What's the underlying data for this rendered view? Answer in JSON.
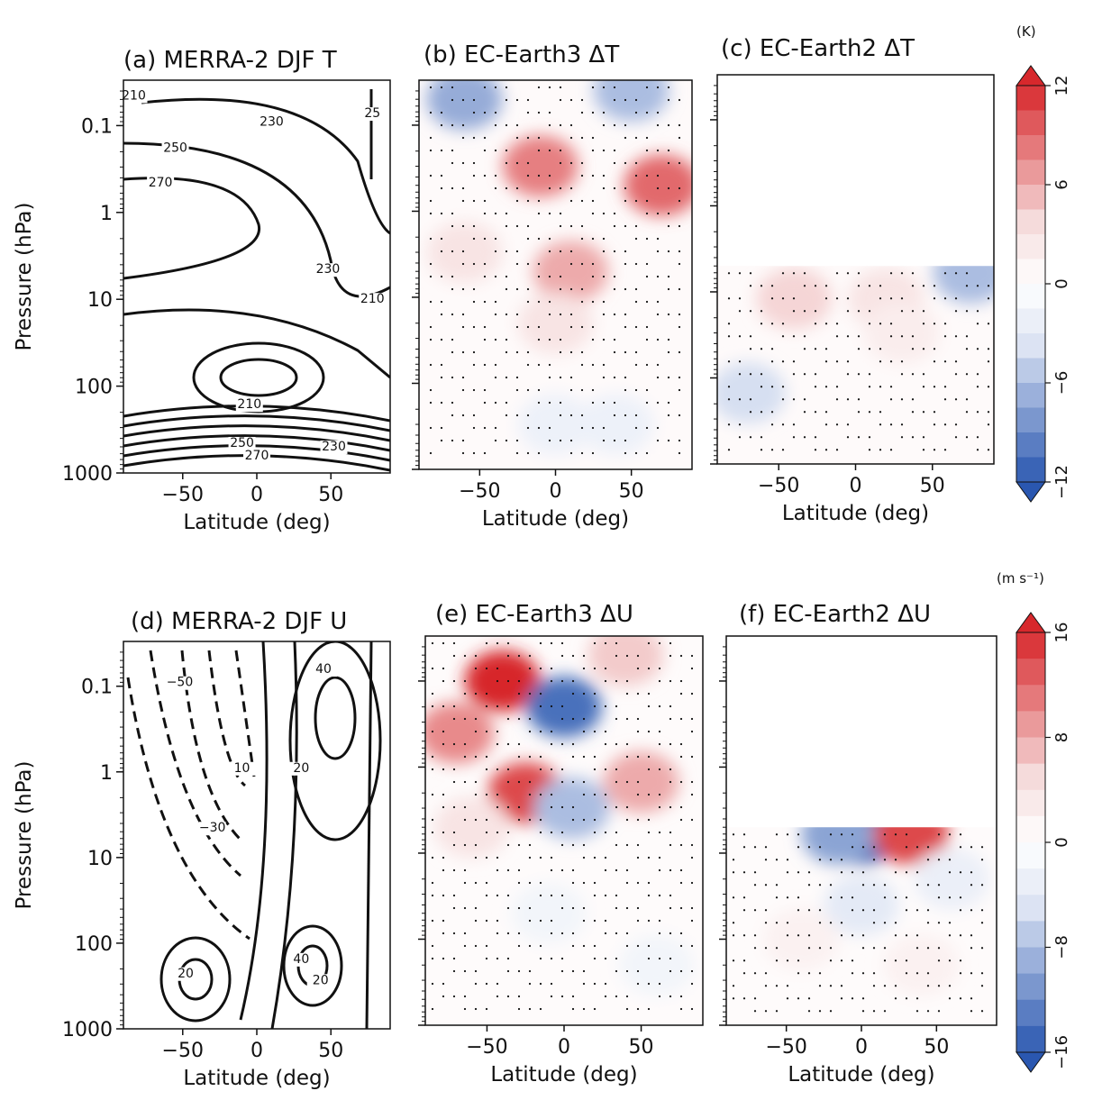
{
  "colors": {
    "negative_strong": "#2a57b0",
    "negative_light": "#dfe6f4",
    "positive_light": "#f6dede",
    "positive_strong": "#d7282c",
    "contour": "#111111",
    "stipple": "#111111"
  },
  "chart_data": [
    {
      "id": "a",
      "type": "contour",
      "title": "(a) MERRA-2 DJF T",
      "xlabel": "Latitude (deg)",
      "ylabel": "Pressure (hPa)",
      "xlim": [
        -90,
        90
      ],
      "ylim": [
        1000,
        0.03
      ],
      "yscale": "log",
      "xticks": [
        "−50",
        "0",
        "50"
      ],
      "yticks": [
        "0.1",
        "1",
        "10",
        "100",
        "1000"
      ],
      "contour_labels": [
        {
          "text": "210",
          "lat": -83,
          "p": 0.05
        },
        {
          "text": "230",
          "lat": 10,
          "p": 0.1
        },
        {
          "text": "25",
          "lat": 78,
          "p": 0.08
        },
        {
          "text": "250",
          "lat": -55,
          "p": 0.2
        },
        {
          "text": "270",
          "lat": -65,
          "p": 0.5
        },
        {
          "text": "230",
          "lat": 48,
          "p": 5
        },
        {
          "text": "210",
          "lat": 78,
          "p": 11
        },
        {
          "text": "210",
          "lat": -5,
          "p": 180
        },
        {
          "text": "250",
          "lat": -10,
          "p": 500
        },
        {
          "text": "270",
          "lat": 0,
          "p": 700
        },
        {
          "text": "230",
          "lat": 52,
          "p": 550
        }
      ]
    },
    {
      "id": "b",
      "type": "heatmap",
      "title": "(b) EC-Earth3 ΔT",
      "xlabel": "Latitude (deg)",
      "ylabel": "",
      "xlim": [
        -90,
        90
      ],
      "ylim": [
        1000,
        0.03
      ],
      "yscale": "log",
      "xticks": [
        "−50",
        "0",
        "50"
      ],
      "colorbar": 0,
      "anomalies": [
        {
          "lat": -60,
          "p": 0.05,
          "value": -7
        },
        {
          "lat": 50,
          "p": 0.04,
          "value": -6
        },
        {
          "lat": -10,
          "p": 0.3,
          "value": 8
        },
        {
          "lat": 70,
          "p": 0.5,
          "value": 9
        },
        {
          "lat": 10,
          "p": 5,
          "value": 6
        },
        {
          "lat": -60,
          "p": 3,
          "value": 3
        },
        {
          "lat": 0,
          "p": 20,
          "value": 3
        },
        {
          "lat": 0,
          "p": 300,
          "value": -2
        },
        {
          "lat": 40,
          "p": 300,
          "value": -2
        }
      ]
    },
    {
      "id": "c",
      "type": "heatmap",
      "title": "(c) EC-Earth2 ΔT",
      "xlabel": "Latitude (deg)",
      "ylabel": "",
      "xlim": [
        -90,
        90
      ],
      "ylim": [
        1000,
        0.03
      ],
      "yscale": "log",
      "data_top_p": 5,
      "xticks": [
        "−50",
        "0",
        "50"
      ],
      "colorbar": 0,
      "anomalies": [
        {
          "lat": -40,
          "p": 12,
          "value": 4
        },
        {
          "lat": 20,
          "p": 12,
          "value": 3
        },
        {
          "lat": 75,
          "p": 6,
          "value": -6
        },
        {
          "lat": -70,
          "p": 150,
          "value": -4
        },
        {
          "lat": 30,
          "p": 30,
          "value": 2
        }
      ]
    },
    {
      "id": "d",
      "type": "contour",
      "title": "(d) MERRA-2 DJF U",
      "xlabel": "Latitude (deg)",
      "ylabel": "Pressure (hPa)",
      "xlim": [
        -90,
        90
      ],
      "ylim": [
        1000,
        0.03
      ],
      "yscale": "log",
      "xticks": [
        "−50",
        "0",
        "50"
      ],
      "yticks": [
        "0.1",
        "1",
        "10",
        "100",
        "1000"
      ],
      "contour_labels": [
        {
          "text": "−50",
          "lat": -52,
          "p": 0.1
        },
        {
          "text": "40",
          "lat": 45,
          "p": 0.07
        },
        {
          "text": "10",
          "lat": -10,
          "p": 1
        },
        {
          "text": "20",
          "lat": 30,
          "p": 1
        },
        {
          "text": "−30",
          "lat": -30,
          "p": 5
        },
        {
          "text": "20",
          "lat": -48,
          "p": 250
        },
        {
          "text": "40",
          "lat": 30,
          "p": 170
        },
        {
          "text": "20",
          "lat": 43,
          "p": 300
        }
      ]
    },
    {
      "id": "e",
      "type": "heatmap",
      "title": "(e) EC-Earth3 ΔU",
      "xlabel": "Latitude (deg)",
      "ylabel": "",
      "xlim": [
        -90,
        90
      ],
      "ylim": [
        1000,
        0.03
      ],
      "yscale": "log",
      "xticks": [
        "−50",
        "0",
        "50"
      ],
      "colorbar": 1,
      "anomalies": [
        {
          "lat": -40,
          "p": 0.1,
          "value": 16
        },
        {
          "lat": -70,
          "p": 0.4,
          "value": 10
        },
        {
          "lat": -25,
          "p": 2,
          "value": 14
        },
        {
          "lat": 0,
          "p": 0.2,
          "value": -14
        },
        {
          "lat": 5,
          "p": 3,
          "value": -8
        },
        {
          "lat": 50,
          "p": 1.5,
          "value": 8
        },
        {
          "lat": 40,
          "p": 0.05,
          "value": 6
        },
        {
          "lat": 60,
          "p": 200,
          "value": -2
        },
        {
          "lat": -10,
          "p": 50,
          "value": -2
        },
        {
          "lat": -60,
          "p": 5,
          "value": 4
        }
      ]
    },
    {
      "id": "f",
      "type": "heatmap",
      "title": "(f) EC-Earth2 ΔU",
      "xlabel": "Latitude (deg)",
      "ylabel": "",
      "xlim": [
        -90,
        90
      ],
      "ylim": [
        1000,
        0.03
      ],
      "yscale": "log",
      "data_top_p": 5,
      "xticks": [
        "−50",
        "0",
        "50"
      ],
      "colorbar": 1,
      "anomalies": [
        {
          "lat": 0,
          "p": 6,
          "value": -16
        },
        {
          "lat": -15,
          "p": 6,
          "value": -10
        },
        {
          "lat": 33,
          "p": 6,
          "value": 14
        },
        {
          "lat": 0,
          "p": 40,
          "value": -4
        },
        {
          "lat": 60,
          "p": 20,
          "value": -3
        },
        {
          "lat": -40,
          "p": 100,
          "value": 2
        },
        {
          "lat": 40,
          "p": 200,
          "value": 2
        }
      ]
    }
  ],
  "colorbars": [
    {
      "unit": "(K)",
      "range": [
        -12,
        12
      ],
      "ticks": [
        "12",
        "6",
        "0",
        "−6",
        "−12"
      ],
      "tick_values": [
        12,
        6,
        0,
        -6,
        -12
      ]
    },
    {
      "unit": "(m s⁻¹)",
      "range": [
        -16,
        16
      ],
      "ticks": [
        "16",
        "8",
        "0",
        "−8",
        "−16"
      ],
      "tick_values": [
        16,
        8,
        0,
        -8,
        -16
      ]
    }
  ]
}
